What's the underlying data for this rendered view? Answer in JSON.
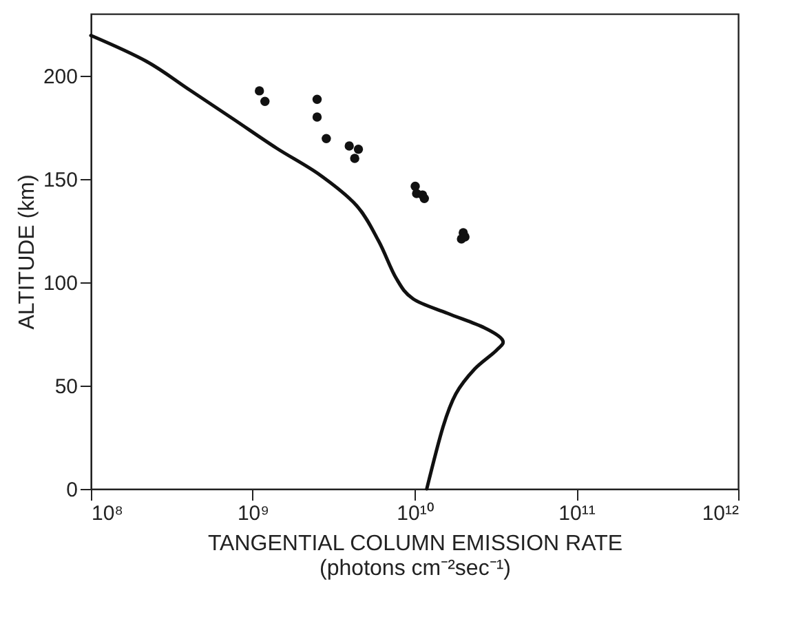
{
  "chart_data": {
    "type": "line",
    "xlabel": "TANGENTIAL COLUMN EMISSION RATE\n(photons cm⁻²sec⁻¹)",
    "ylabel": "ALTITUDE (km)",
    "log": "x",
    "grid": false,
    "xlim": [
      100000000.0,
      1000000000000.0
    ],
    "ylim": [
      0,
      230
    ],
    "xticks": [
      {
        "value": 100000000.0,
        "label": "10⁸"
      },
      {
        "value": 1000000000.0,
        "label": "10⁹"
      },
      {
        "value": 10000000000.0,
        "label": "10¹⁰"
      },
      {
        "value": 100000000000.0,
        "label": "10¹¹"
      },
      {
        "value": 1000000000000.0,
        "label": "10¹²"
      }
    ],
    "yticks": [
      0,
      50,
      100,
      150,
      200
    ],
    "series": [
      {
        "color": "#111111",
        "line_style": "solid",
        "marker": "none",
        "x": [
          100000000.0,
          220000000.0,
          410000000.0,
          760000000.0,
          1400000000.0,
          2600000000.0,
          4400000000.0,
          6000000000.0,
          7700000000.0,
          9800000000.0,
          16000000000.0,
          27000000000.0,
          35000000000.0,
          32000000000.0,
          23500000000.0,
          18000000000.0,
          15000000000.0,
          11900000000.0
        ],
        "values": [
          219.5,
          207,
          193,
          179,
          165,
          152,
          137,
          120,
          102,
          92,
          85,
          78,
          72,
          67,
          58,
          46,
          30,
          0
        ]
      },
      {
        "type": "scatter",
        "color": "#111111",
        "marker": "circle",
        "x": [
          1100000000.0,
          1190000000.0,
          2500000000.0,
          2500000000.0,
          2850000000.0,
          3950000000.0,
          4500000000.0,
          4270000000.0,
          10100000000.0,
          10300000000.0,
          11200000000.0,
          11500000000.0,
          20000000000.0,
          19500000000.0,
          20500000000.0
        ],
        "values": [
          192.7,
          187.6,
          188.6,
          180,
          169.6,
          166,
          164.4,
          160,
          146.5,
          143,
          142.3,
          140.6,
          124,
          121,
          122
        ]
      }
    ]
  }
}
